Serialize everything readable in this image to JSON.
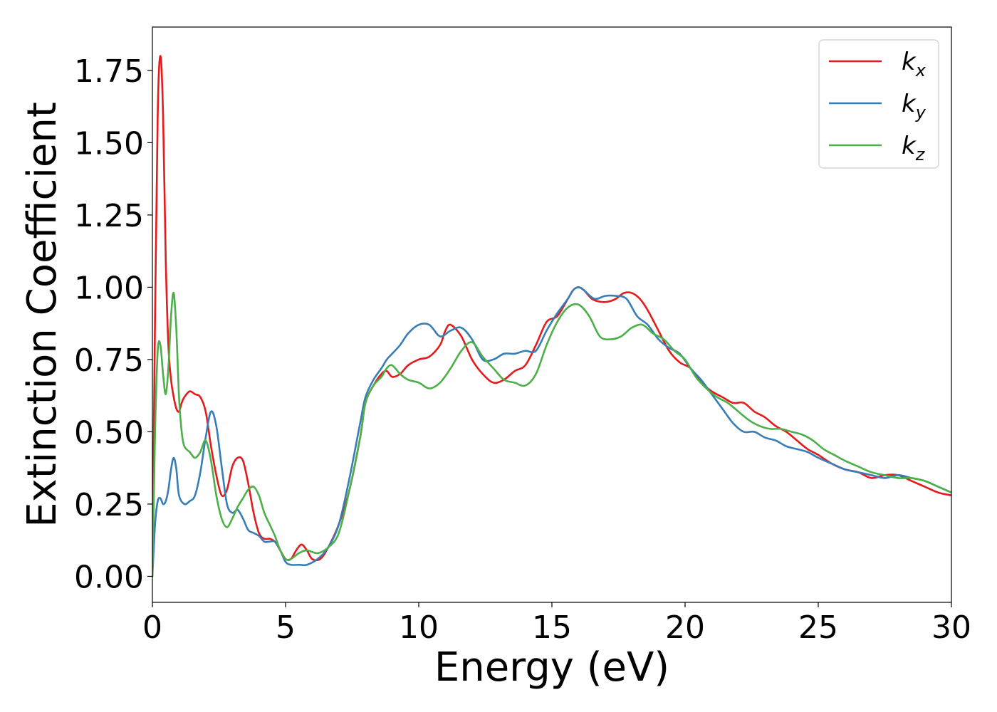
{
  "chart_data": {
    "type": "line",
    "xlabel": "Energy (eV)",
    "ylabel": "Extinction Coefficient",
    "xlim": [
      0,
      30
    ],
    "ylim": [
      -0.09,
      1.9
    ],
    "xticks": [
      0,
      5,
      10,
      15,
      20,
      25,
      30
    ],
    "xtick_labels": [
      "0",
      "5",
      "10",
      "15",
      "20",
      "25",
      "30"
    ],
    "yticks": [
      0,
      0.25,
      0.5,
      0.75,
      1.0,
      1.25,
      1.5,
      1.75
    ],
    "ytick_labels": [
      "0.00",
      "0.25",
      "0.50",
      "0.75",
      "1.00",
      "1.25",
      "1.50",
      "1.75"
    ],
    "grid": false,
    "legend_position": "top-right",
    "series": [
      {
        "name": "k_x",
        "label_main": "k",
        "label_sub": "x",
        "color": "#e41a1c",
        "x": [
          0,
          0.1,
          0.2,
          0.3,
          0.4,
          0.5,
          0.6,
          0.7,
          0.8,
          0.9,
          1.0,
          1.1,
          1.2,
          1.4,
          1.6,
          1.8,
          2.0,
          2.2,
          2.4,
          2.6,
          2.8,
          3.0,
          3.2,
          3.4,
          3.6,
          3.8,
          4.0,
          4.2,
          4.4,
          4.6,
          4.8,
          5.0,
          5.2,
          5.4,
          5.6,
          5.8,
          6.0,
          6.3,
          6.6,
          7.0,
          7.4,
          7.8,
          8.0,
          8.3,
          8.6,
          8.8,
          9.0,
          9.3,
          9.6,
          10.0,
          10.4,
          10.8,
          11.0,
          11.2,
          11.6,
          12.0,
          12.4,
          12.8,
          13.2,
          13.6,
          14.0,
          14.4,
          14.8,
          15.2,
          15.6,
          15.8,
          16.0,
          16.2,
          16.5,
          16.8,
          17.1,
          17.4,
          17.7,
          18.0,
          18.3,
          18.6,
          19.0,
          19.4,
          19.8,
          20.2,
          20.6,
          21.0,
          21.4,
          21.8,
          22.2,
          22.6,
          23.0,
          23.4,
          23.8,
          24.2,
          24.6,
          25.0,
          25.5,
          26.0,
          26.5,
          27.0,
          27.5,
          28.0,
          28.5,
          29.0,
          29.5,
          30.0
        ],
        "values": [
          0.0,
          0.9,
          1.6,
          1.8,
          1.6,
          1.1,
          0.8,
          0.68,
          0.62,
          0.58,
          0.57,
          0.6,
          0.62,
          0.64,
          0.63,
          0.62,
          0.57,
          0.45,
          0.35,
          0.28,
          0.3,
          0.38,
          0.41,
          0.4,
          0.32,
          0.22,
          0.15,
          0.13,
          0.13,
          0.12,
          0.09,
          0.06,
          0.06,
          0.09,
          0.11,
          0.09,
          0.06,
          0.06,
          0.1,
          0.18,
          0.3,
          0.48,
          0.6,
          0.66,
          0.7,
          0.71,
          0.69,
          0.7,
          0.73,
          0.75,
          0.76,
          0.8,
          0.85,
          0.87,
          0.83,
          0.75,
          0.7,
          0.67,
          0.68,
          0.71,
          0.73,
          0.8,
          0.88,
          0.9,
          0.96,
          0.99,
          1.0,
          0.99,
          0.96,
          0.95,
          0.95,
          0.96,
          0.98,
          0.98,
          0.96,
          0.92,
          0.85,
          0.78,
          0.74,
          0.72,
          0.67,
          0.64,
          0.62,
          0.6,
          0.6,
          0.57,
          0.55,
          0.52,
          0.5,
          0.47,
          0.44,
          0.42,
          0.39,
          0.37,
          0.36,
          0.34,
          0.35,
          0.35,
          0.33,
          0.31,
          0.29,
          0.28
        ]
      },
      {
        "name": "k_y",
        "label_main": "k",
        "label_sub": "y",
        "color": "#377eb8",
        "x": [
          0,
          0.1,
          0.2,
          0.3,
          0.4,
          0.5,
          0.6,
          0.7,
          0.8,
          0.9,
          1.0,
          1.2,
          1.4,
          1.6,
          1.8,
          2.0,
          2.2,
          2.4,
          2.6,
          2.8,
          3.0,
          3.2,
          3.4,
          3.6,
          3.8,
          4.0,
          4.2,
          4.4,
          4.6,
          4.8,
          5.0,
          5.2,
          5.5,
          5.8,
          6.2,
          6.6,
          7.0,
          7.4,
          7.8,
          8.0,
          8.3,
          8.6,
          8.8,
          9.0,
          9.3,
          9.6,
          10.0,
          10.4,
          10.8,
          11.2,
          11.6,
          12.0,
          12.4,
          12.8,
          13.2,
          13.6,
          14.0,
          14.4,
          14.8,
          15.2,
          15.6,
          15.8,
          16.0,
          16.2,
          16.6,
          17.0,
          17.4,
          17.8,
          18.2,
          18.6,
          19.0,
          19.4,
          19.8,
          20.2,
          20.6,
          21.0,
          21.4,
          21.8,
          22.2,
          22.6,
          23.0,
          23.4,
          23.8,
          24.2,
          24.6,
          25.0,
          25.5,
          26.0,
          26.5,
          27.0,
          27.5,
          28.0,
          28.5,
          29.0,
          29.5,
          30.0
        ],
        "values": [
          0.0,
          0.18,
          0.26,
          0.27,
          0.25,
          0.26,
          0.3,
          0.37,
          0.41,
          0.37,
          0.28,
          0.25,
          0.26,
          0.28,
          0.36,
          0.48,
          0.57,
          0.52,
          0.38,
          0.25,
          0.22,
          0.23,
          0.2,
          0.16,
          0.15,
          0.14,
          0.12,
          0.12,
          0.12,
          0.09,
          0.05,
          0.04,
          0.04,
          0.04,
          0.06,
          0.1,
          0.18,
          0.34,
          0.53,
          0.62,
          0.68,
          0.72,
          0.75,
          0.77,
          0.8,
          0.84,
          0.87,
          0.87,
          0.83,
          0.85,
          0.86,
          0.82,
          0.75,
          0.75,
          0.77,
          0.77,
          0.78,
          0.78,
          0.85,
          0.91,
          0.96,
          0.99,
          1.0,
          0.99,
          0.96,
          0.97,
          0.97,
          0.96,
          0.9,
          0.87,
          0.82,
          0.79,
          0.77,
          0.72,
          0.68,
          0.63,
          0.58,
          0.53,
          0.5,
          0.5,
          0.48,
          0.47,
          0.45,
          0.44,
          0.43,
          0.41,
          0.39,
          0.37,
          0.36,
          0.35,
          0.34,
          0.35,
          0.34,
          0.33,
          0.31,
          0.29
        ]
      },
      {
        "name": "k_z",
        "label_main": "k",
        "label_sub": "z",
        "color": "#4daf4a",
        "x": [
          0,
          0.1,
          0.2,
          0.3,
          0.4,
          0.5,
          0.6,
          0.7,
          0.8,
          0.9,
          1.0,
          1.1,
          1.2,
          1.4,
          1.6,
          1.8,
          2.0,
          2.2,
          2.4,
          2.6,
          2.8,
          3.0,
          3.2,
          3.4,
          3.6,
          3.8,
          4.0,
          4.2,
          4.4,
          4.6,
          4.8,
          5.0,
          5.2,
          5.5,
          5.8,
          6.2,
          6.6,
          7.0,
          7.4,
          7.8,
          8.0,
          8.3,
          8.6,
          8.8,
          9.0,
          9.3,
          9.6,
          10.0,
          10.4,
          10.8,
          11.2,
          11.6,
          12.0,
          12.4,
          12.8,
          13.2,
          13.6,
          14.0,
          14.4,
          14.8,
          15.2,
          15.6,
          16.0,
          16.4,
          16.8,
          17.2,
          17.6,
          18.0,
          18.4,
          18.8,
          19.2,
          19.6,
          20.0,
          20.4,
          20.8,
          21.2,
          21.6,
          22.0,
          22.4,
          22.8,
          23.2,
          23.6,
          24.0,
          24.4,
          24.8,
          25.2,
          25.6,
          26.0,
          26.5,
          27.0,
          27.5,
          28.0,
          28.5,
          29.0,
          29.5,
          30.0
        ],
        "values": [
          0.0,
          0.5,
          0.78,
          0.8,
          0.7,
          0.63,
          0.72,
          0.9,
          0.98,
          0.85,
          0.62,
          0.5,
          0.45,
          0.43,
          0.41,
          0.43,
          0.47,
          0.4,
          0.28,
          0.2,
          0.17,
          0.2,
          0.24,
          0.27,
          0.3,
          0.31,
          0.28,
          0.22,
          0.18,
          0.14,
          0.09,
          0.06,
          0.06,
          0.08,
          0.09,
          0.08,
          0.1,
          0.15,
          0.3,
          0.48,
          0.6,
          0.66,
          0.69,
          0.72,
          0.73,
          0.7,
          0.68,
          0.67,
          0.65,
          0.67,
          0.72,
          0.78,
          0.81,
          0.76,
          0.72,
          0.68,
          0.67,
          0.66,
          0.7,
          0.8,
          0.88,
          0.93,
          0.94,
          0.9,
          0.83,
          0.82,
          0.83,
          0.86,
          0.87,
          0.84,
          0.82,
          0.78,
          0.75,
          0.69,
          0.65,
          0.62,
          0.6,
          0.57,
          0.54,
          0.52,
          0.51,
          0.51,
          0.5,
          0.49,
          0.47,
          0.44,
          0.42,
          0.4,
          0.38,
          0.36,
          0.35,
          0.34,
          0.34,
          0.33,
          0.31,
          0.29
        ]
      }
    ]
  }
}
